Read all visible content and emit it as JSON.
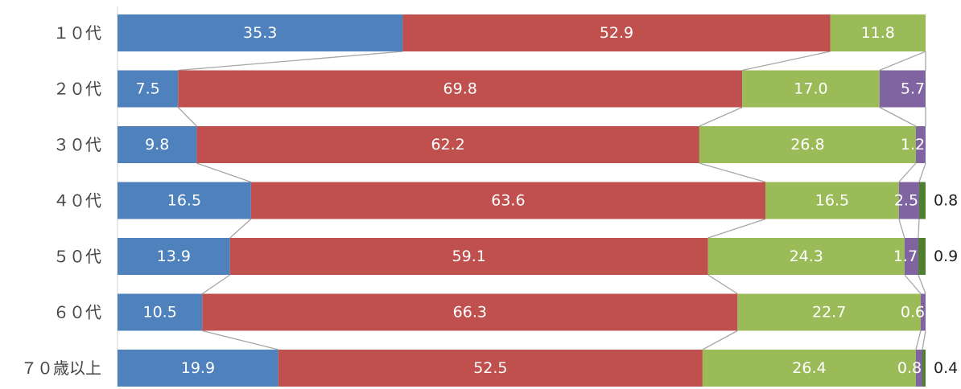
{
  "chart_data": {
    "type": "bar",
    "orientation": "horizontal",
    "stacked": "100%",
    "grid": false,
    "legend": "none",
    "xlim": [
      0,
      100
    ],
    "categories": [
      "１０代",
      "２０代",
      "３０代",
      "４０代",
      "５０代",
      "６０代",
      "７０歳以上"
    ],
    "series": [
      {
        "values": [
          35.3,
          7.5,
          9.8,
          16.5,
          13.9,
          10.5,
          19.9
        ],
        "labels": [
          "35.3",
          "7.5",
          "9.8",
          "16.5",
          "13.9",
          "10.5",
          "19.9"
        ],
        "color": "#4F81BD"
      },
      {
        "values": [
          52.9,
          69.8,
          62.2,
          63.6,
          59.1,
          66.3,
          52.5
        ],
        "labels": [
          "52.9",
          "69.8",
          "62.2",
          "63.6",
          "59.1",
          "66.3",
          "52.5"
        ],
        "color": "#C0504D"
      },
      {
        "values": [
          11.8,
          17.0,
          26.8,
          16.5,
          24.3,
          22.7,
          26.4
        ],
        "labels": [
          "11.8",
          "17.0",
          "26.8",
          "16.5",
          "24.3",
          "22.7",
          "26.4"
        ],
        "color": "#9BBB59"
      },
      {
        "values": [
          0,
          5.7,
          1.2,
          2.5,
          1.7,
          0.6,
          0.8
        ],
        "labels": [
          "",
          "5.7",
          "1.2",
          "2.5",
          "1.7",
          "0.6",
          "0.8"
        ],
        "color": "#8064A2"
      },
      {
        "values": [
          0,
          0,
          0,
          0.8,
          0.9,
          0,
          0.4
        ],
        "labels": [
          "",
          "",
          "",
          "0.8",
          "0.9",
          "",
          "0.4"
        ],
        "color": "#4F7F30"
      }
    ],
    "series_lines": true,
    "series_line_color": "#A6A6A6",
    "label_color_inside": "#ffffff",
    "label_color_outside": "#222222"
  }
}
